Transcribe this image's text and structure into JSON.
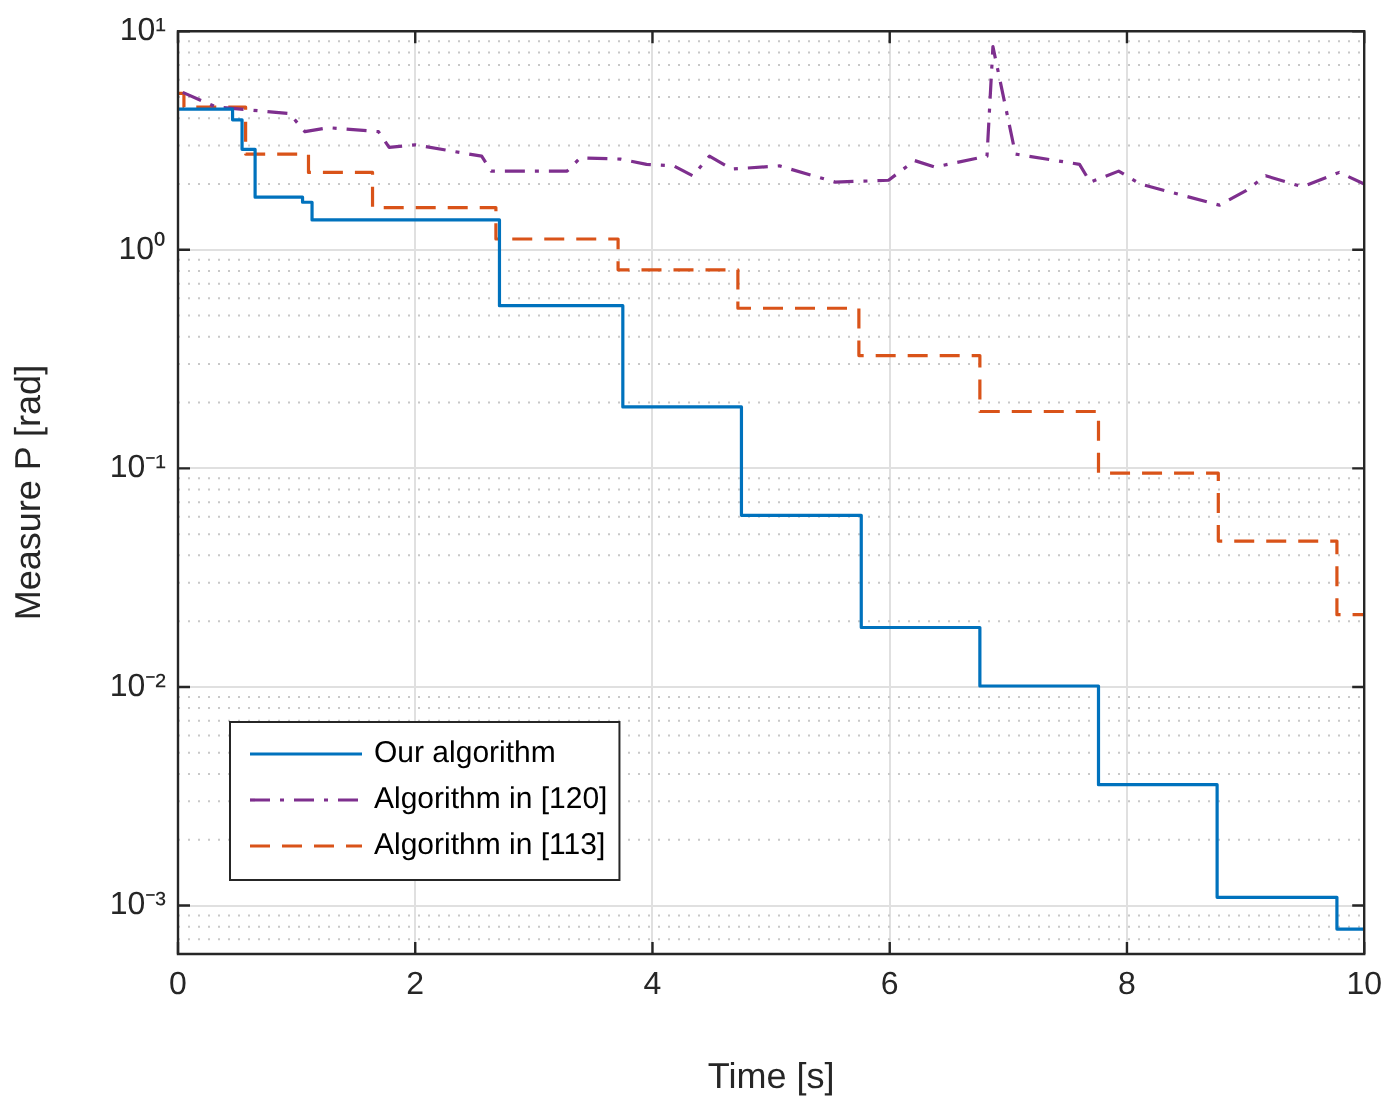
{
  "chart_data": {
    "type": "line",
    "xlabel": "Time [s]",
    "ylabel": "Measure P [rad]",
    "xlim": [
      0,
      10
    ],
    "xticks": [
      0,
      2,
      4,
      6,
      8,
      10
    ],
    "ylim": [
      0.0006,
      10
    ],
    "log": "y",
    "yticks": [
      {
        "value": 0.001,
        "label": "10⁻³"
      },
      {
        "value": 0.01,
        "label": "10⁻²"
      },
      {
        "value": 0.1,
        "label": "10⁻¹"
      },
      {
        "value": 1,
        "label": "10⁰"
      },
      {
        "value": 10,
        "label": "10¹"
      }
    ],
    "grid": true,
    "legend": "bottom left",
    "series": [
      {
        "name": "Our algorithm",
        "type": "step",
        "color": "#0072bd",
        "line_style": "solid",
        "x": [
          0,
          0.46,
          0.54,
          0.65,
          1.05,
          1.13,
          2.71,
          3.75,
          4.75,
          5.76,
          6.76,
          7.76,
          8.76,
          9.77,
          10
        ],
        "values": [
          4.4,
          3.93,
          2.88,
          1.74,
          1.65,
          1.37,
          0.555,
          0.191,
          0.061,
          0.0187,
          0.0101,
          0.00357,
          0.00109,
          0.00078,
          0.00078
        ]
      },
      {
        "name": "Algorithm in [120]",
        "type": "line",
        "color": "#7e2f8e",
        "line_style": "dashdot",
        "x": [
          0.04,
          0.32,
          0.94,
          1.07,
          1.27,
          1.69,
          1.78,
          2.0,
          2.56,
          2.64,
          3.28,
          3.39,
          3.73,
          3.95,
          4.18,
          4.34,
          4.48,
          4.67,
          5.07,
          5.54,
          5.99,
          6.21,
          6.38,
          6.82,
          6.87,
          7.06,
          7.6,
          7.69,
          7.93,
          8.11,
          8.78,
          9.0,
          9.17,
          9.48,
          9.79,
          10.0
        ],
        "values": [
          5.25,
          4.5,
          4.2,
          3.47,
          3.62,
          3.47,
          2.94,
          3.02,
          2.68,
          2.29,
          2.29,
          2.63,
          2.6,
          2.46,
          2.42,
          2.18,
          2.68,
          2.34,
          2.42,
          2.04,
          2.08,
          2.56,
          2.39,
          2.68,
          8.5,
          2.74,
          2.46,
          2.04,
          2.29,
          2.0,
          1.6,
          1.86,
          2.18,
          1.94,
          2.26,
          2.0
        ]
      },
      {
        "name": "Algorithm in [113]",
        "type": "step",
        "color": "#d95319",
        "line_style": "dashed",
        "x": [
          0,
          0.05,
          0.57,
          1.1,
          1.64,
          2.68,
          3.71,
          4.72,
          5.74,
          6.76,
          7.76,
          8.77,
          9.77,
          10
        ],
        "values": [
          5.2,
          4.5,
          2.74,
          2.26,
          1.56,
          1.12,
          0.81,
          0.54,
          0.328,
          0.182,
          0.095,
          0.0465,
          0.0214,
          0.0214
        ]
      }
    ]
  }
}
